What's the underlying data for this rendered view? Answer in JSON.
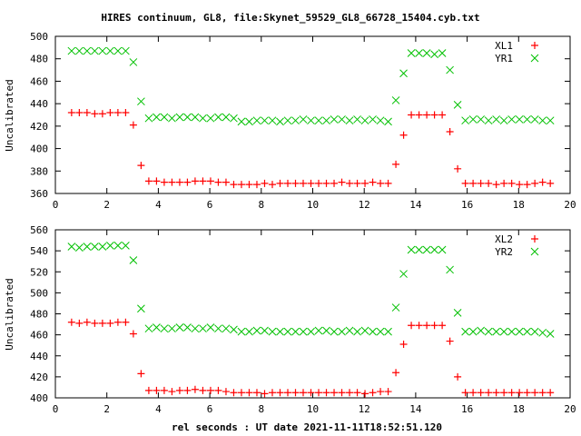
{
  "chart_data": [
    {
      "type": "scatter",
      "title": "HIRES continuum, GL8, file:Skynet_59529_GL8_66728_15404.cyb.txt",
      "xlabel": "",
      "ylabel": "Uncalibrated",
      "xlim": [
        0,
        20
      ],
      "ylim": [
        360,
        500
      ],
      "xticks": [
        0,
        2,
        4,
        6,
        8,
        10,
        12,
        14,
        16,
        18,
        20
      ],
      "yticks": [
        360,
        380,
        400,
        420,
        440,
        460,
        480,
        500
      ],
      "legend_position": "top-right",
      "x_start": 0.63,
      "x_step": 0.3,
      "series": [
        {
          "name": "XL1",
          "marker": "plus",
          "color": "#ff0000",
          "values": [
            432,
            432,
            432,
            431,
            431,
            432,
            432,
            432,
            421,
            385,
            371,
            371,
            370,
            370,
            370,
            370,
            371,
            371,
            371,
            370,
            370,
            368,
            368,
            368,
            368,
            369,
            368,
            369,
            369,
            369,
            369,
            369,
            369,
            369,
            369,
            370,
            369,
            369,
            369,
            370,
            369,
            369,
            386,
            412,
            430,
            430,
            430,
            430,
            430,
            415,
            382,
            369,
            369,
            369,
            369,
            368,
            369,
            369,
            368,
            368,
            369,
            370,
            369
          ]
        },
        {
          "name": "YR1",
          "marker": "cross",
          "color": "#00c000",
          "values": [
            487,
            487,
            487,
            487,
            487,
            487,
            487,
            487,
            477,
            442,
            427,
            428,
            428,
            427,
            428,
            428,
            428,
            427,
            427,
            428,
            428,
            427,
            424,
            424,
            425,
            425,
            425,
            424,
            425,
            425,
            426,
            425,
            425,
            425,
            426,
            426,
            425,
            426,
            425,
            426,
            425,
            424,
            443,
            467,
            485,
            485,
            485,
            484,
            485,
            470,
            439,
            425,
            426,
            426,
            425,
            426,
            425,
            426,
            426,
            426,
            426,
            425,
            425
          ]
        }
      ]
    },
    {
      "type": "scatter",
      "title": "",
      "xlabel": "rel seconds : UT date 2021-11-11T18:52:51.120",
      "ylabel": "Uncalibrated",
      "xlim": [
        0,
        20
      ],
      "ylim": [
        400,
        560
      ],
      "xticks": [
        0,
        2,
        4,
        6,
        8,
        10,
        12,
        14,
        16,
        18,
        20
      ],
      "yticks": [
        400,
        420,
        440,
        460,
        480,
        500,
        520,
        540,
        560
      ],
      "legend_position": "top-right",
      "x_start": 0.63,
      "x_step": 0.3,
      "series": [
        {
          "name": "XL2",
          "marker": "plus",
          "color": "#ff0000",
          "values": [
            472,
            471,
            472,
            471,
            471,
            471,
            472,
            472,
            461,
            423,
            407,
            407,
            407,
            406,
            407,
            407,
            408,
            407,
            407,
            407,
            406,
            405,
            405,
            405,
            405,
            404,
            405,
            405,
            405,
            405,
            405,
            405,
            405,
            405,
            405,
            405,
            405,
            405,
            404,
            405,
            406,
            406,
            424,
            451,
            469,
            469,
            469,
            469,
            469,
            454,
            420,
            405,
            405,
            405,
            405,
            405,
            405,
            405,
            405,
            405,
            405,
            405,
            405
          ]
        },
        {
          "name": "YR2",
          "marker": "cross",
          "color": "#00c000",
          "values": [
            544,
            543,
            544,
            544,
            544,
            545,
            545,
            545,
            531,
            485,
            466,
            467,
            466,
            466,
            467,
            467,
            466,
            466,
            467,
            466,
            466,
            465,
            463,
            463,
            464,
            464,
            463,
            463,
            463,
            463,
            463,
            463,
            464,
            464,
            463,
            463,
            464,
            463,
            464,
            463,
            463,
            463,
            486,
            518,
            541,
            541,
            541,
            541,
            541,
            522,
            481,
            463,
            463,
            464,
            463,
            463,
            463,
            463,
            463,
            463,
            463,
            462,
            461
          ]
        }
      ]
    }
  ]
}
